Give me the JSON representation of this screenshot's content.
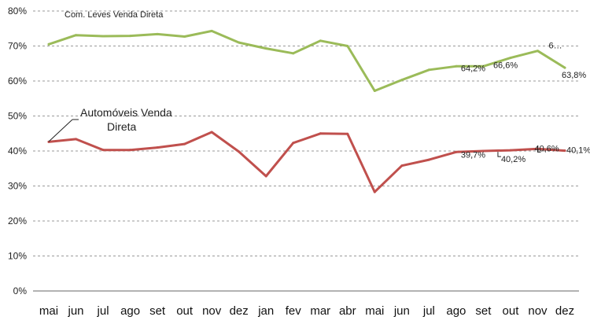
{
  "chart_data": {
    "type": "line",
    "categories": [
      "mai",
      "jun",
      "jul",
      "ago",
      "set",
      "out",
      "nov",
      "dez",
      "jan",
      "fev",
      "mar",
      "abr",
      "mai",
      "jun",
      "jul",
      "ago",
      "set",
      "out",
      "nov",
      "dez"
    ],
    "ylim": [
      0,
      80
    ],
    "yticks": [
      0,
      10,
      20,
      30,
      40,
      50,
      60,
      70,
      80
    ],
    "ytick_labels": [
      "0%",
      "10%",
      "20%",
      "30%",
      "40%",
      "50%",
      "60%",
      "70%",
      "80%"
    ],
    "grid": true,
    "series": [
      {
        "name": "Com. Leves Venda Direta",
        "color": "#9BBB59",
        "values": [
          70.5,
          73.1,
          72.8,
          72.9,
          73.4,
          72.7,
          74.3,
          71.0,
          69.3,
          67.9,
          71.5,
          70.0,
          57.2,
          60.3,
          63.2,
          64.2,
          64.2,
          66.6,
          68.6,
          63.8
        ]
      },
      {
        "name": "Automóveis Venda Direta",
        "color": "#C0504D",
        "values": [
          42.6,
          43.4,
          40.3,
          40.3,
          41.0,
          42.0,
          45.4,
          39.8,
          32.8,
          42.3,
          45.0,
          44.9,
          28.3,
          35.8,
          37.5,
          39.7,
          40.0,
          40.2,
          40.6,
          40.1
        ]
      }
    ],
    "data_labels": [
      {
        "series": 0,
        "index": 15,
        "text": "64,2%"
      },
      {
        "series": 0,
        "index": 17,
        "text": "66,6%"
      },
      {
        "series": 0,
        "index": 18,
        "text": "6…"
      },
      {
        "series": 0,
        "index": 19,
        "text": "63,8%"
      },
      {
        "series": 1,
        "index": 15,
        "text": "39,7%"
      },
      {
        "series": 1,
        "index": 17,
        "text": "40,2%"
      },
      {
        "series": 1,
        "index": 18,
        "text": "40,6%"
      },
      {
        "series": 1,
        "index": 19,
        "text": "40,1%"
      }
    ],
    "annotations": {
      "green_series_label": "Com. Leves Venda Direta",
      "red_series_label_line1": "Automóveis Venda",
      "red_series_label_line2": "Direta"
    }
  }
}
